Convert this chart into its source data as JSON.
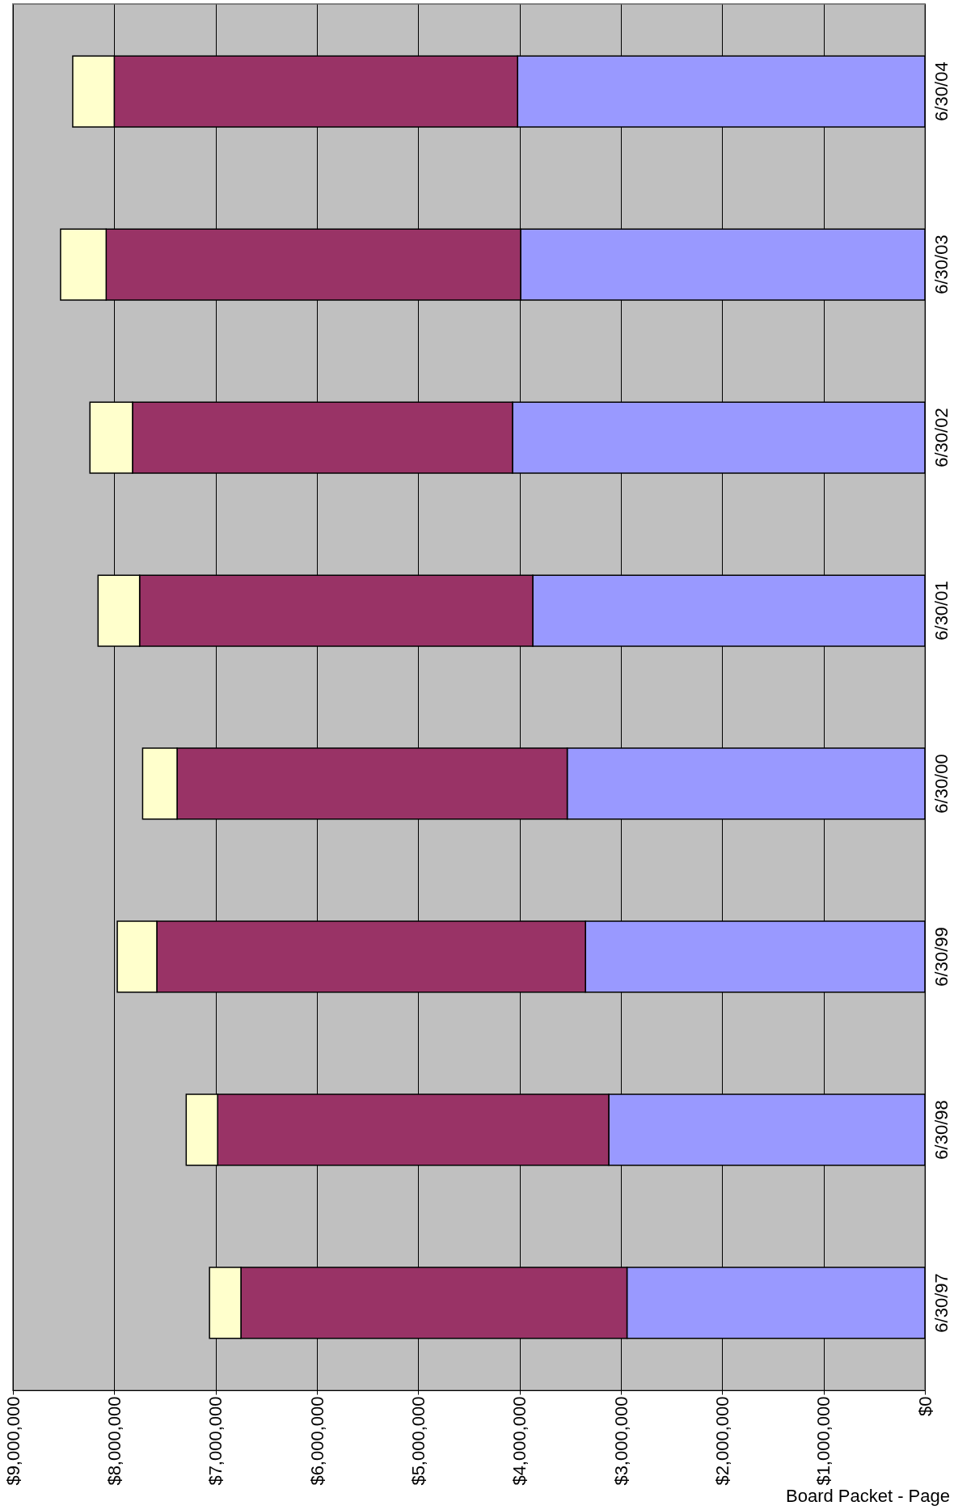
{
  "chart_data": {
    "type": "bar",
    "orientation": "horizontal",
    "stacked": true,
    "categories": [
      "6/30/04",
      "6/30/03",
      "6/30/02",
      "6/30/01",
      "6/30/00",
      "6/30/99",
      "6/30/98",
      "6/30/97"
    ],
    "series": [
      {
        "color": "#9999ff",
        "values": [
          4020000,
          3990000,
          4070000,
          3870000,
          3530000,
          3350000,
          3120000,
          2940000
        ]
      },
      {
        "color": "#993366",
        "values": [
          3980000,
          4090000,
          3750000,
          3880000,
          3850000,
          4230000,
          3860000,
          3810000
        ]
      },
      {
        "color": "#ffffcc",
        "values": [
          410000,
          450000,
          420000,
          410000,
          340000,
          390000,
          310000,
          310000
        ]
      }
    ],
    "xlim": [
      9000000,
      0
    ],
    "xticks": [
      {
        "value": 9000000,
        "label": "$9,000,000"
      },
      {
        "value": 8000000,
        "label": "$8,000,000"
      },
      {
        "value": 7000000,
        "label": "$7,000,000"
      },
      {
        "value": 6000000,
        "label": "$6,000,000"
      },
      {
        "value": 5000000,
        "label": "$5,000,000"
      },
      {
        "value": 4000000,
        "label": "$4,000,000"
      },
      {
        "value": 3000000,
        "label": "$3,000,000"
      },
      {
        "value": 2000000,
        "label": "$2,000,000"
      },
      {
        "value": 1000000,
        "label": "$1,000,000"
      },
      {
        "value": 0,
        "label": "$0"
      }
    ],
    "grid": "x",
    "annotations": [
      "Board Packet - Page"
    ]
  }
}
